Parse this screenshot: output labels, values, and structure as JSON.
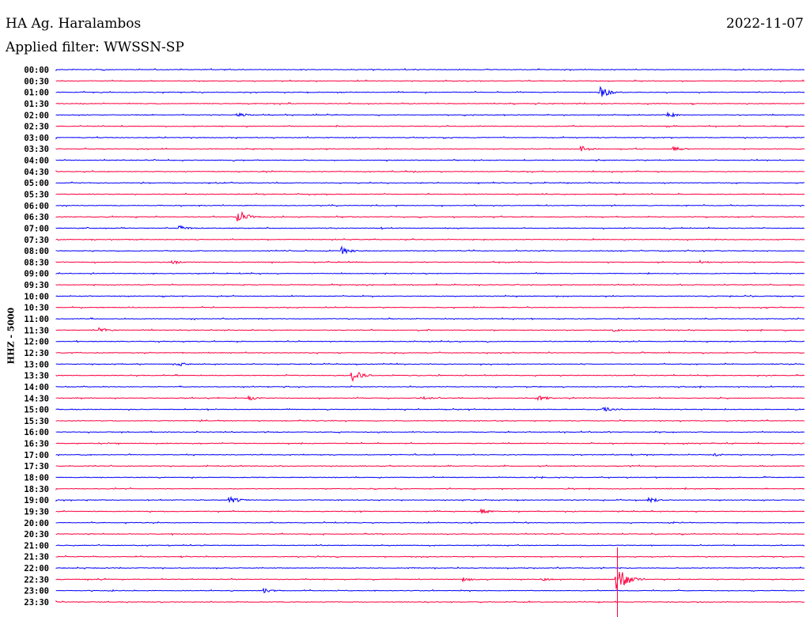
{
  "header": {
    "station": "HA Ag. Haralambos",
    "filter": "Applied filter: WWSSN-SP",
    "date": "2022-11-07"
  },
  "chart_data": {
    "type": "line",
    "title": "HA Ag. Haralambos",
    "subtitle": "Applied filter: WWSSN-SP",
    "ylabel": "HHZ - 5000",
    "xlabel": "",
    "row_minutes": 30,
    "colors": [
      "#0000ff",
      "#ff0040"
    ],
    "rows": [
      "00:00",
      "00:30",
      "01:00",
      "01:30",
      "02:00",
      "02:30",
      "03:00",
      "03:30",
      "04:00",
      "04:30",
      "05:00",
      "05:30",
      "06:00",
      "06:30",
      "07:00",
      "07:30",
      "08:00",
      "08:30",
      "09:00",
      "09:30",
      "10:00",
      "10:30",
      "11:00",
      "11:30",
      "12:00",
      "12:30",
      "13:00",
      "13:30",
      "14:00",
      "14:30",
      "15:00",
      "15:30",
      "16:00",
      "16:30",
      "17:00",
      "17:30",
      "18:00",
      "18:30",
      "19:00",
      "19:30",
      "20:00",
      "20:30",
      "21:00",
      "21:30",
      "22:00",
      "22:30",
      "23:00",
      "23:30"
    ],
    "events": [
      {
        "row": 2,
        "minute": 21.9,
        "amp": 7
      },
      {
        "row": 4,
        "minute": 7.3,
        "amp": 3
      },
      {
        "row": 4,
        "minute": 24.6,
        "amp": 3
      },
      {
        "row": 7,
        "minute": 21.1,
        "amp": 4
      },
      {
        "row": 7,
        "minute": 24.8,
        "amp": 3
      },
      {
        "row": 13,
        "minute": 7.3,
        "amp": 9
      },
      {
        "row": 14,
        "minute": 5.0,
        "amp": 3
      },
      {
        "row": 16,
        "minute": 11.5,
        "amp": 5
      },
      {
        "row": 17,
        "minute": 4.7,
        "amp": 3
      },
      {
        "row": 17,
        "minute": 25.9,
        "amp": 2
      },
      {
        "row": 23,
        "minute": 1.8,
        "amp": 3
      },
      {
        "row": 23,
        "minute": 22.4,
        "amp": 2
      },
      {
        "row": 26,
        "minute": 4.9,
        "amp": 3
      },
      {
        "row": 27,
        "minute": 11.9,
        "amp": 8
      },
      {
        "row": 29,
        "minute": 7.8,
        "amp": 3
      },
      {
        "row": 29,
        "minute": 14.7,
        "amp": 3
      },
      {
        "row": 29,
        "minute": 19.4,
        "amp": 3
      },
      {
        "row": 30,
        "minute": 22.0,
        "amp": 3
      },
      {
        "row": 34,
        "minute": 26.4,
        "amp": 2
      },
      {
        "row": 38,
        "minute": 7.0,
        "amp": 5
      },
      {
        "row": 38,
        "minute": 23.8,
        "amp": 4
      },
      {
        "row": 39,
        "minute": 17.1,
        "amp": 3
      },
      {
        "row": 45,
        "minute": 16.4,
        "amp": 3
      },
      {
        "row": 45,
        "minute": 19.6,
        "amp": 2
      },
      {
        "row": 45,
        "minute": 22.5,
        "amp": 20
      },
      {
        "row": 46,
        "minute": 8.4,
        "amp": 3
      }
    ]
  }
}
